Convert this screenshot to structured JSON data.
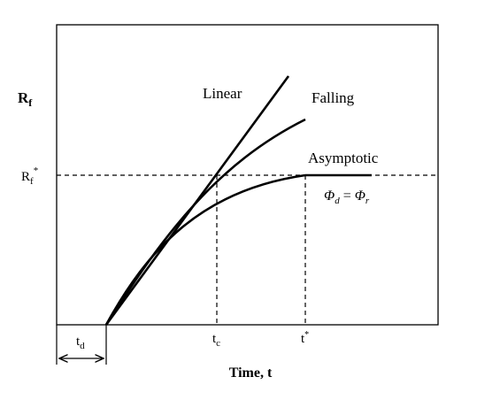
{
  "y_axis_label": {
    "main": "R",
    "sub": "f"
  },
  "y_reference_label": {
    "main": "R",
    "sub": "f",
    "sup": "*"
  },
  "x_axis_label": "Time, t",
  "x_tick_labels": {
    "td": {
      "main": "t",
      "sub": "d"
    },
    "tc": {
      "main": "t",
      "sub": "c"
    },
    "tstar": {
      "main": "t",
      "sup": "*"
    }
  },
  "curve_labels": {
    "linear": "Linear",
    "falling": "Falling",
    "asymptotic": "Asymptotic"
  },
  "equation": {
    "lhs": "Φ",
    "lhs_sub": "d",
    "equals": " = ",
    "rhs": "Φ",
    "rhs_sub": "r"
  }
}
